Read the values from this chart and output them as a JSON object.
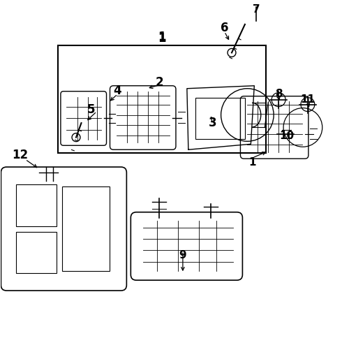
{
  "bg_color": "#ffffff",
  "line_color": "#000000",
  "fig_width": 4.9,
  "fig_height": 5.14,
  "dpi": 100,
  "labels": {
    "1a": [
      1,
      [
        3.55,
        3.3
      ]
    ],
    "1b": [
      1,
      [
        2.45,
        3.72
      ]
    ],
    "2": [
      2,
      [
        2.3,
        3.85
      ]
    ],
    "3": [
      3,
      [
        3.05,
        3.35
      ]
    ],
    "4": [
      4,
      [
        1.7,
        3.8
      ]
    ],
    "5": [
      5,
      [
        1.38,
        3.55
      ]
    ],
    "6": [
      6,
      [
        3.18,
        4.72
      ]
    ],
    "7": [
      7,
      [
        3.65,
        4.95
      ]
    ],
    "8": [
      8,
      [
        3.98,
        3.72
      ]
    ],
    "9": [
      9,
      [
        2.62,
        1.45
      ]
    ],
    "10": [
      10,
      [
        4.1,
        3.18
      ]
    ],
    "11": [
      11,
      [
        4.42,
        3.72
      ]
    ],
    "12": [
      12,
      [
        0.3,
        2.9
      ]
    ]
  }
}
